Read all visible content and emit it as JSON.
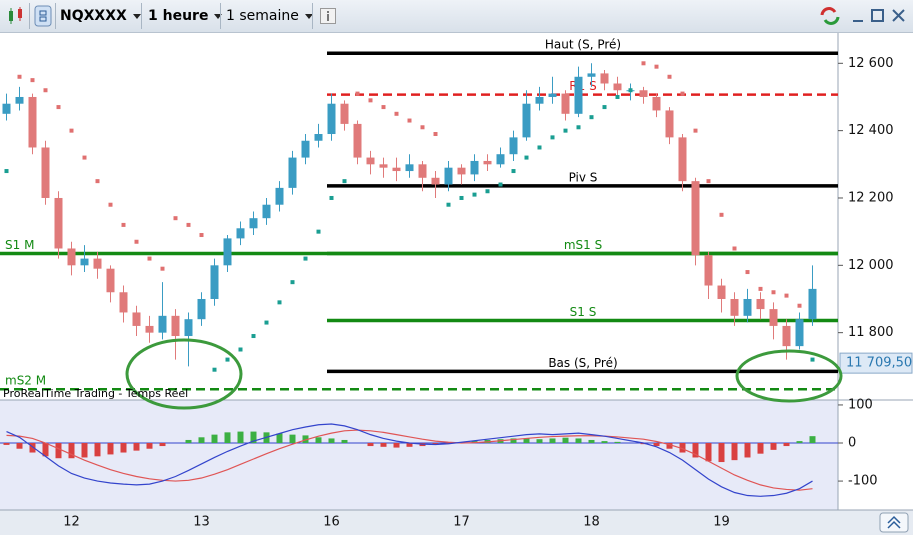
{
  "toolbar": {
    "symbol": "NQXXXX",
    "timeframe": "1 heure",
    "period": "1 semaine"
  },
  "chart_data": [
    {
      "type": "candlestick",
      "categories": [
        null,
        null,
        null,
        null,
        null,
        "12",
        null,
        null,
        null,
        null,
        null,
        null,
        null,
        null,
        null,
        "13",
        null,
        null,
        null,
        null,
        null,
        null,
        null,
        null,
        null,
        "16",
        null,
        null,
        null,
        null,
        null,
        null,
        null,
        null,
        null,
        "17",
        null,
        null,
        null,
        null,
        null,
        null,
        null,
        null,
        null,
        "18",
        null,
        null,
        null,
        null,
        null,
        null,
        null,
        null,
        null,
        "19",
        null,
        null,
        null,
        null,
        null,
        null,
        null
      ],
      "open": [
        12450,
        12480,
        12500,
        12350,
        12200,
        12050,
        12000,
        12020,
        11990,
        11920,
        11860,
        11820,
        11800,
        11850,
        11790,
        11840,
        11900,
        12000,
        12080,
        12110,
        12140,
        12180,
        12230,
        12320,
        12370,
        12390,
        12480,
        12420,
        12320,
        12300,
        12290,
        12280,
        12300,
        12260,
        12240,
        12290,
        12270,
        12310,
        12300,
        12330,
        12380,
        12480,
        12500,
        12510,
        12450,
        12560,
        12570,
        12540,
        12520,
        12520,
        12500,
        12460,
        12380,
        12250,
        12030,
        11940,
        11900,
        11850,
        11900,
        11870,
        11820,
        11760,
        11840
      ],
      "high": [
        12510,
        12530,
        12510,
        12370,
        12220,
        12070,
        12060,
        12040,
        12000,
        11940,
        11880,
        11850,
        11950,
        11870,
        11860,
        11920,
        12020,
        12090,
        12130,
        12160,
        12200,
        12250,
        12340,
        12390,
        12420,
        12510,
        12490,
        12430,
        12340,
        12320,
        12320,
        12330,
        12310,
        12280,
        12310,
        12300,
        12330,
        12330,
        12350,
        12400,
        12520,
        12530,
        12560,
        12520,
        12590,
        12600,
        12580,
        12560,
        12540,
        12530,
        12510,
        12470,
        12390,
        12260,
        12040,
        11960,
        11920,
        11930,
        11920,
        11890,
        11840,
        11860,
        12000
      ],
      "low": [
        12430,
        12460,
        12330,
        12180,
        12020,
        11970,
        11980,
        11960,
        11890,
        11830,
        11790,
        11770,
        11780,
        11720,
        11700,
        11820,
        11880,
        11980,
        12060,
        12090,
        12120,
        12160,
        12210,
        12300,
        12350,
        12370,
        12400,
        12300,
        12270,
        12260,
        12250,
        12260,
        12220,
        12200,
        12220,
        12240,
        12250,
        12280,
        12290,
        12310,
        12370,
        12460,
        12480,
        12430,
        12440,
        12530,
        12520,
        12500,
        12490,
        12480,
        12440,
        12360,
        12220,
        12000,
        11900,
        11860,
        11820,
        11830,
        11840,
        11780,
        11720,
        11750,
        11820
      ],
      "close": [
        12480,
        12500,
        12350,
        12200,
        12050,
        12000,
        12020,
        11990,
        11920,
        11860,
        11820,
        11800,
        11850,
        11790,
        11840,
        11900,
        12000,
        12080,
        12110,
        12140,
        12180,
        12230,
        12320,
        12370,
        12390,
        12480,
        12420,
        12320,
        12300,
        12290,
        12280,
        12300,
        12260,
        12240,
        12290,
        12270,
        12310,
        12300,
        12330,
        12380,
        12480,
        12500,
        12510,
        12450,
        12560,
        12570,
        12540,
        12520,
        12520,
        12500,
        12460,
        12380,
        12250,
        12030,
        11940,
        11900,
        11850,
        11900,
        11870,
        11820,
        11760,
        11840,
        11930
      ],
      "up_color": "#3a9cc3",
      "down_color": "#e07a7a",
      "sar": {
        "values": [
          12280,
          12560,
          12550,
          12520,
          12470,
          12400,
          12320,
          12250,
          12180,
          12120,
          12070,
          12020,
          11990,
          12140,
          12120,
          12090,
          11690,
          11720,
          11750,
          11790,
          11830,
          11890,
          11950,
          12020,
          12100,
          12200,
          12250,
          12510,
          12490,
          12470,
          12450,
          12430,
          12410,
          12390,
          12180,
          12200,
          12210,
          12220,
          12240,
          12280,
          12320,
          12350,
          12380,
          12400,
          12410,
          12440,
          12470,
          12500,
          12520,
          12600,
          12590,
          12560,
          12510,
          12400,
          12250,
          12150,
          12050,
          11980,
          11930,
          11920,
          11910,
          11880,
          11720
        ],
        "color_above": "#e07070",
        "color_below": "#1a9e92"
      },
      "levels": [
        {
          "label": "Haut (S, Pré)",
          "value": 12630,
          "color": "#000000",
          "dashed": false,
          "span": "session"
        },
        {
          "label": "R1 S",
          "value": 12507,
          "color": "#e02020",
          "dashed": true,
          "span": "session"
        },
        {
          "label": "Piv S",
          "value": 12236,
          "color": "#000000",
          "dashed": false,
          "span": "session"
        },
        {
          "label": "S1 M",
          "value": 12035,
          "color": "#138a13",
          "dashed": false,
          "span": "full"
        },
        {
          "label": "mS1 S",
          "value": 12035,
          "color": "#138a13",
          "dashed": false,
          "span": "session"
        },
        {
          "label": "S1 S",
          "value": 11836,
          "color": "#138a13",
          "dashed": false,
          "span": "session"
        },
        {
          "label": "Bas (S, Pré)",
          "value": 11685,
          "color": "#000000",
          "dashed": false,
          "span": "session"
        },
        {
          "label": "mS2 M",
          "value": 11632,
          "color": "#138a13",
          "dashed": true,
          "span": "full"
        }
      ],
      "last_price": {
        "value": 11709.5,
        "label": "11 709,50"
      },
      "ylim": [
        11600,
        12690
      ],
      "yticks": [
        {
          "value": 12600,
          "label": "12 600"
        },
        {
          "value": 12400,
          "label": "12 400"
        },
        {
          "value": 12200,
          "label": "12 200"
        },
        {
          "value": 12000,
          "label": "12 000"
        },
        {
          "value": 11800,
          "label": "11 800"
        }
      ]
    },
    {
      "type": "macd",
      "title": "ProRealTime Trading - Temps Réel",
      "histogram": {
        "values": [
          -5,
          -15,
          -25,
          -35,
          -40,
          -40,
          -38,
          -35,
          -30,
          -25,
          -20,
          -15,
          -8,
          0,
          8,
          15,
          22,
          28,
          30,
          30,
          28,
          25,
          22,
          20,
          15,
          12,
          8,
          0,
          -8,
          -10,
          -12,
          -10,
          -8,
          -5,
          -2,
          2,
          5,
          8,
          10,
          12,
          12,
          10,
          12,
          14,
          12,
          8,
          5,
          3,
          0,
          -3,
          -8,
          -15,
          -25,
          -38,
          -48,
          -50,
          -45,
          -38,
          -28,
          -18,
          -8,
          5,
          18
        ],
        "color_up": "#3cb043",
        "color_down": "#d94040"
      },
      "macd": {
        "values": [
          30,
          15,
          -10,
          -35,
          -60,
          -80,
          -92,
          -100,
          -105,
          -108,
          -110,
          -108,
          -100,
          -88,
          -72,
          -55,
          -38,
          -22,
          -8,
          5,
          15,
          25,
          35,
          42,
          48,
          50,
          45,
          35,
          22,
          12,
          5,
          0,
          -3,
          -4,
          -2,
          2,
          6,
          10,
          14,
          18,
          22,
          24,
          22,
          24,
          26,
          22,
          18,
          12,
          6,
          0,
          -10,
          -25,
          -45,
          -70,
          -95,
          -115,
          -130,
          -138,
          -140,
          -138,
          -132,
          -120,
          -100
        ],
        "color": "#3344cc"
      },
      "signal": {
        "values": [
          20,
          18,
          12,
          0,
          -15,
          -30,
          -45,
          -58,
          -70,
          -80,
          -88,
          -94,
          -98,
          -100,
          -98,
          -92,
          -82,
          -70,
          -56,
          -42,
          -28,
          -15,
          -3,
          8,
          18,
          26,
          32,
          34,
          32,
          28,
          22,
          16,
          10,
          5,
          2,
          0,
          1,
          3,
          6,
          9,
          12,
          15,
          17,
          18,
          19,
          19,
          18,
          16,
          13,
          10,
          4,
          -4,
          -15,
          -30,
          -48,
          -66,
          -84,
          -98,
          -110,
          -118,
          -122,
          -124,
          -120
        ],
        "color": "#e05555"
      },
      "ylim": [
        -176,
        113
      ],
      "yticks": [
        100,
        0,
        -100
      ]
    }
  ]
}
